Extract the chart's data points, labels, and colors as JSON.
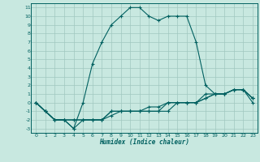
{
  "title": "",
  "xlabel": "Humidex (Indice chaleur)",
  "background_color": "#c8e8e0",
  "grid_color": "#a0c8c0",
  "line_color": "#006060",
  "xlim": [
    -0.5,
    23.5
  ],
  "ylim": [
    -3.5,
    11.5
  ],
  "x_ticks": [
    0,
    1,
    2,
    3,
    4,
    5,
    6,
    7,
    8,
    9,
    10,
    11,
    12,
    13,
    14,
    15,
    16,
    17,
    18,
    19,
    20,
    21,
    22,
    23
  ],
  "y_ticks": [
    -3,
    -2,
    -1,
    0,
    1,
    2,
    3,
    4,
    5,
    6,
    7,
    8,
    9,
    10,
    11
  ],
  "line1_x": [
    0,
    1,
    2,
    3,
    4,
    5,
    6,
    7,
    8,
    9,
    10,
    11,
    12,
    13,
    14,
    15,
    16,
    17,
    18,
    19,
    20,
    21,
    22,
    23
  ],
  "line1_y": [
    0,
    -1,
    -2,
    -2,
    -3,
    -2,
    -2,
    -2,
    -1,
    -1,
    -1,
    -1,
    -1,
    -1,
    0,
    0,
    0,
    0,
    0.5,
    1,
    1,
    1.5,
    1.5,
    0.5
  ],
  "line2_x": [
    0,
    1,
    2,
    3,
    4,
    5,
    6,
    7,
    8,
    9,
    10,
    11,
    12,
    13,
    14,
    15,
    16,
    17,
    18,
    19,
    20,
    21,
    22,
    23
  ],
  "line2_y": [
    0,
    -1,
    -2,
    -2,
    -3,
    0,
    4.5,
    7,
    9,
    10,
    11,
    11,
    10,
    9.5,
    10,
    10,
    10,
    7,
    2,
    1,
    1,
    1.5,
    1.5,
    0
  ],
  "line3_x": [
    0,
    1,
    2,
    3,
    4,
    5,
    6,
    7,
    8,
    9,
    10,
    11,
    12,
    13,
    14,
    15,
    16,
    17,
    18,
    19,
    20,
    21,
    22,
    23
  ],
  "line3_y": [
    0,
    -1,
    -2,
    -2,
    -2,
    -2,
    -2,
    -2,
    -1,
    -1,
    -1,
    -1,
    -1,
    -1,
    -1,
    0,
    0,
    0,
    1,
    1,
    1,
    1.5,
    1.5,
    0.5
  ],
  "line4_x": [
    0,
    1,
    2,
    3,
    4,
    5,
    6,
    7,
    8,
    9,
    10,
    11,
    12,
    13,
    14,
    15,
    16,
    17,
    18,
    19,
    20,
    21,
    22,
    23
  ],
  "line4_y": [
    0,
    -1,
    -2,
    -2,
    -2,
    -2,
    -2,
    -2,
    -1.5,
    -1,
    -1,
    -1,
    -0.5,
    -0.5,
    0,
    0,
    0,
    0,
    0.5,
    1,
    1,
    1.5,
    1.5,
    0.5
  ]
}
